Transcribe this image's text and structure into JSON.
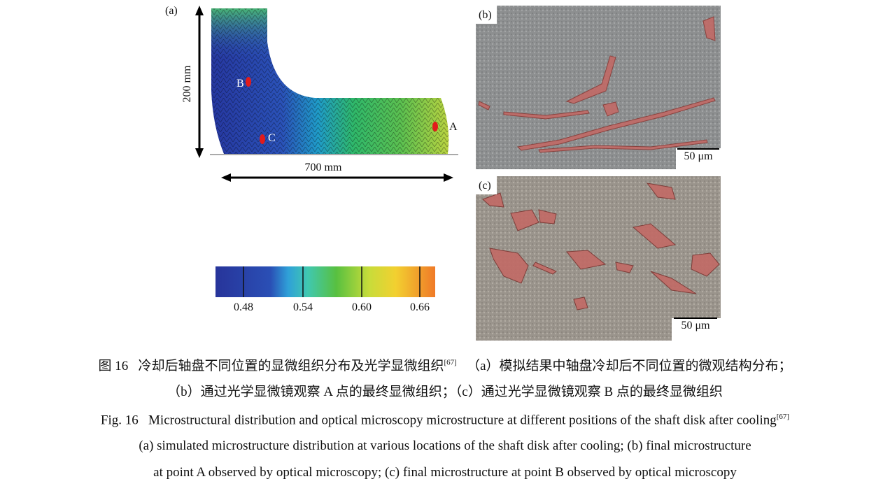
{
  "figure": {
    "panel_a": {
      "label": "(a)",
      "height_label": "200 mm",
      "width_label": "700 mm",
      "points": [
        "A",
        "B",
        "C"
      ],
      "colorbar_ticks": [
        "0.48",
        "0.54",
        "0.60",
        "0.66"
      ]
    },
    "panel_b": {
      "label": "(b)",
      "scale_bar": "50 μm"
    },
    "panel_c": {
      "label": "(c)",
      "scale_bar": "50 μm"
    }
  },
  "caption": {
    "zh": {
      "number": "图 16",
      "title": "冷却后轴盘不同位置的显微组织分布及光学显微组织",
      "ref": "[67]",
      "line1_rest": "（a）模拟结果中轴盘冷却后不同位置的微观结构分布；",
      "line2": "（b）通过光学显微镜观察 A 点的最终显微组织；（c）通过光学显微镜观察 B 点的最终显微组织"
    },
    "en": {
      "number": "Fig. 16",
      "title": "Microstructural distribution and optical microscopy microstructure at different positions of the shaft disk after cooling",
      "ref": "[67]",
      "line2": "(a) simulated microstructure distribution at various locations of the shaft disk after cooling; (b) final microstructure",
      "line3": "at point A observed by optical microscopy; (c) final microstructure at point B observed by optical microscopy"
    }
  }
}
